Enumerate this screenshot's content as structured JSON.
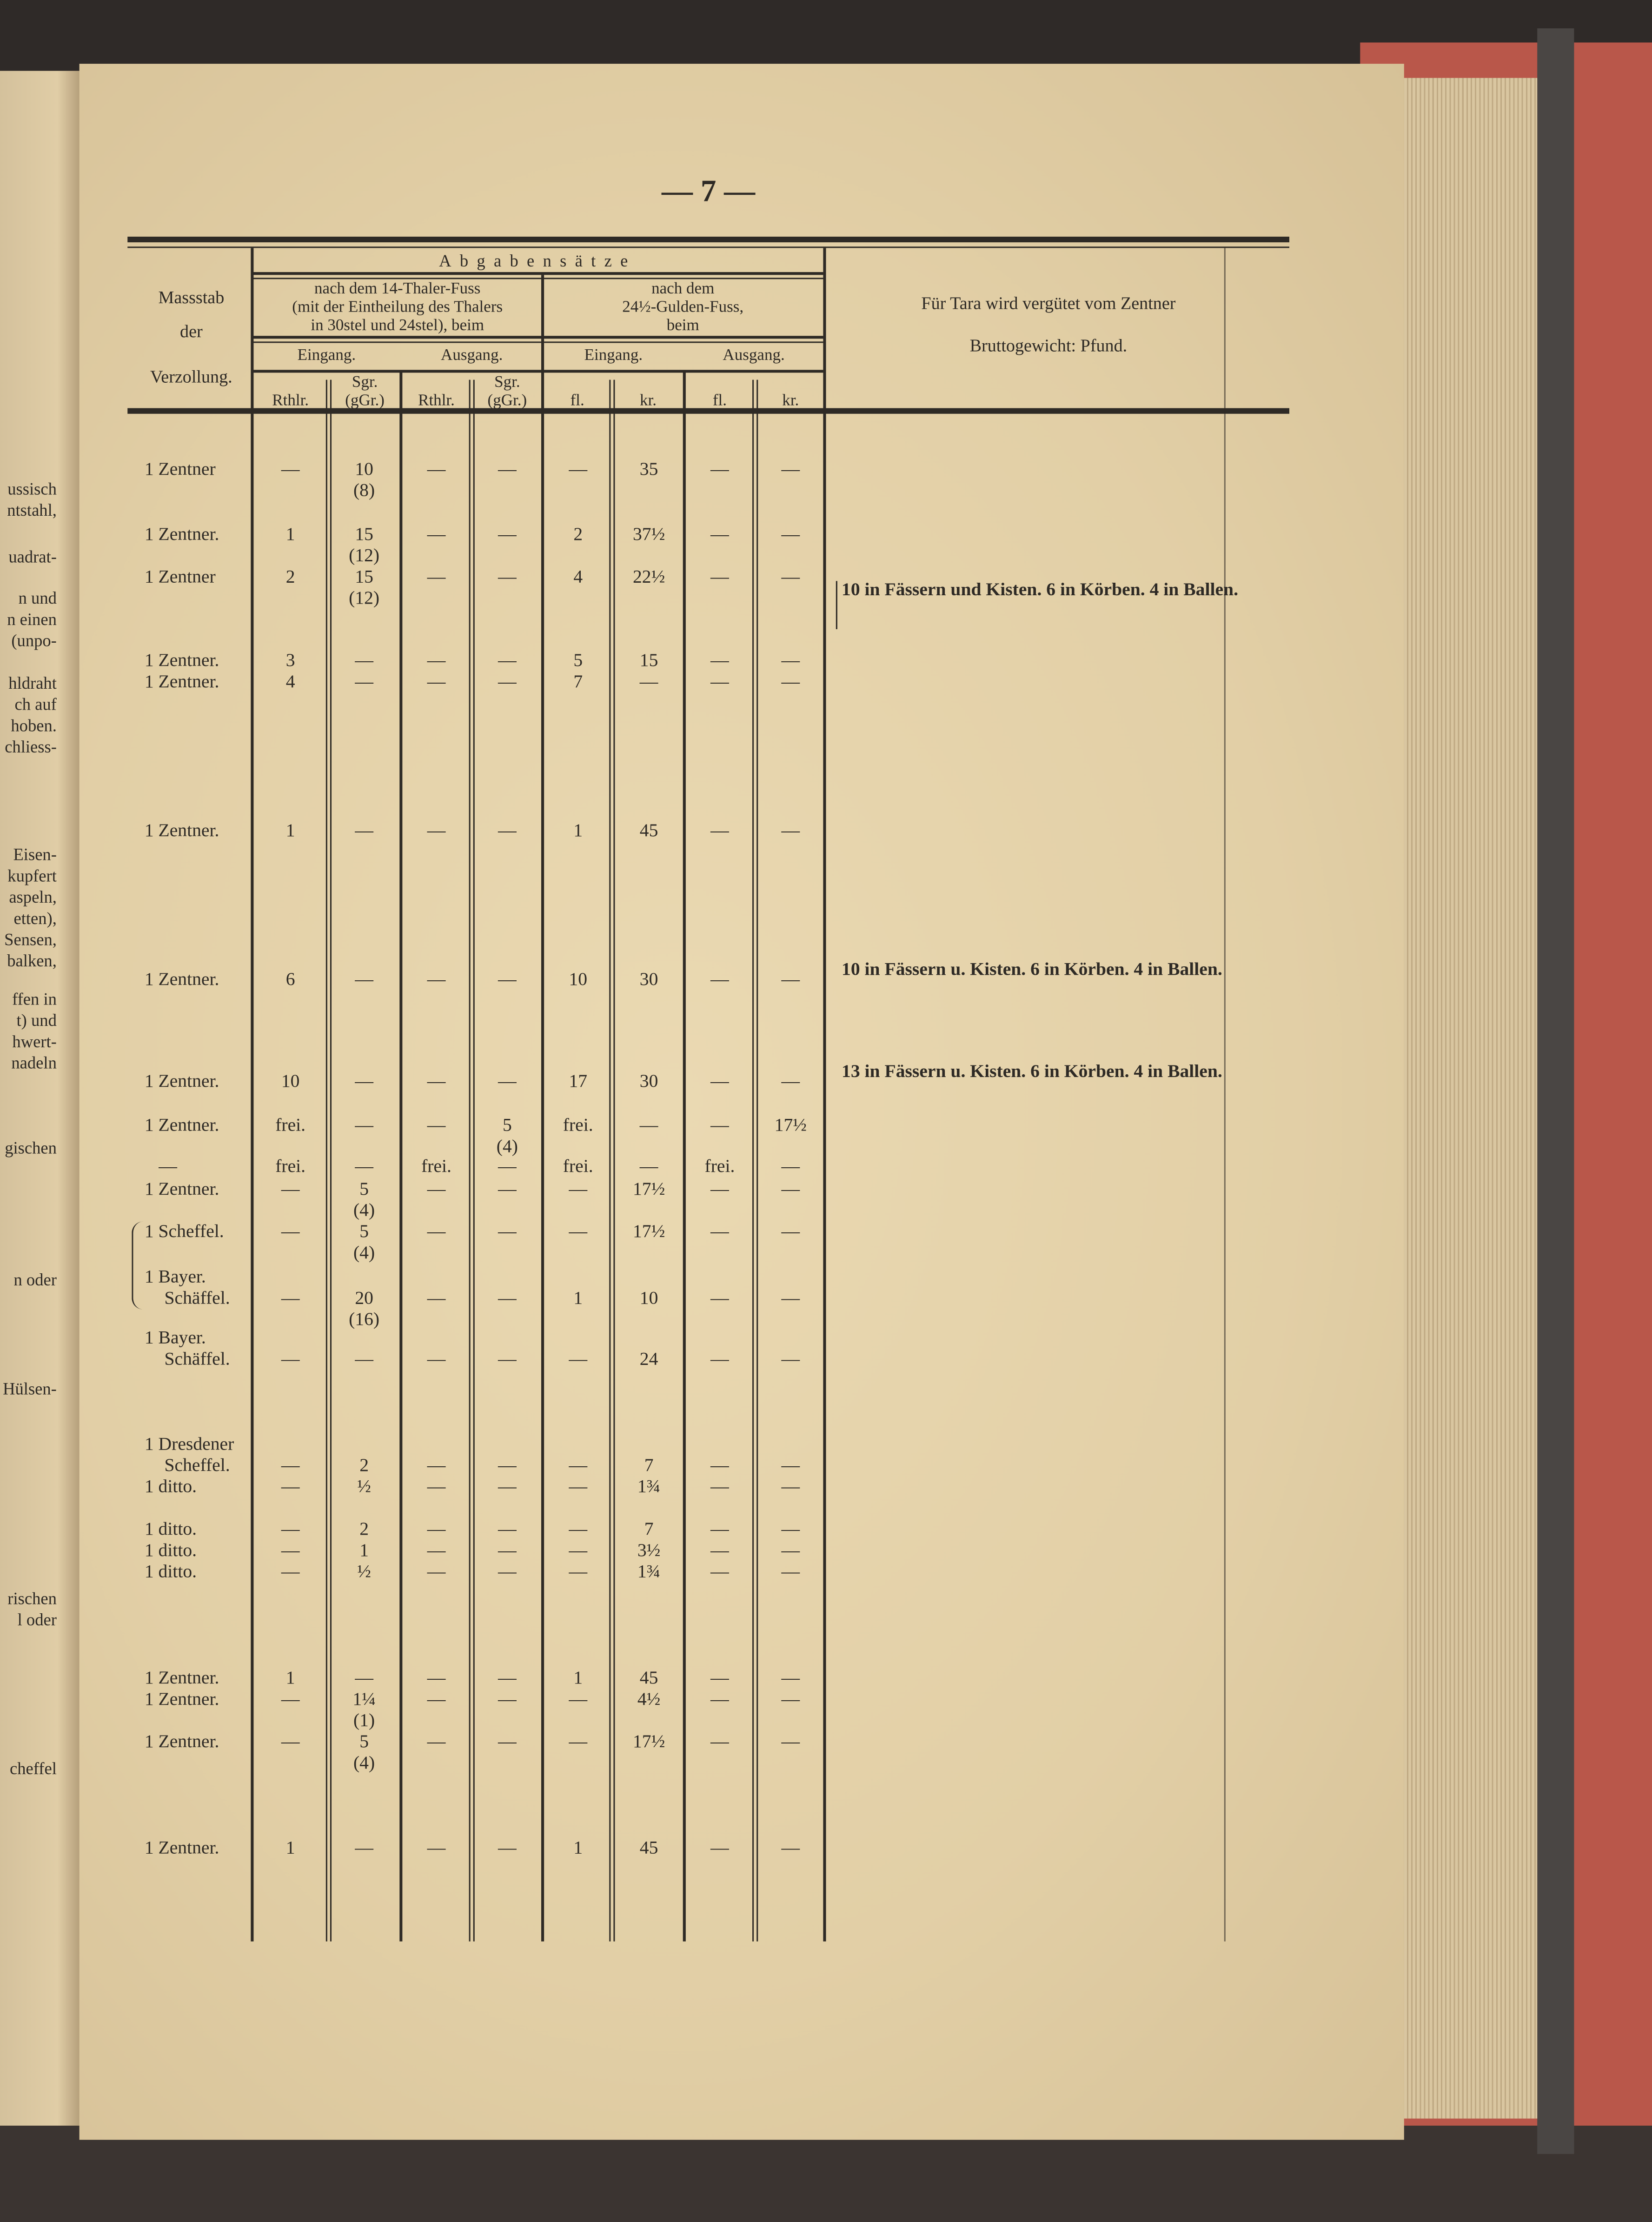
{
  "page_number": "— 7 —",
  "left_page_fragments": [
    "ussisch",
    "ntstahl,",
    "uadrat-",
    "n und",
    "n einen",
    "(unpo-",
    "hldraht",
    "ch auf",
    "hoben.",
    "chliess-",
    "Eisen-",
    "kupfert",
    "aspeln,",
    "etten),",
    "Sensen,",
    "balken,",
    "ffen in",
    "t) und",
    "hwert-",
    "nadeln",
    "gischen",
    "n oder",
    "Hülsen-",
    "rischen",
    "l oder",
    "cheffel"
  ],
  "header": {
    "massstab": "Massstab",
    "der": "der",
    "verzollung": "Verzollung.",
    "abgabensaetze": "Abgabensätze",
    "thaler_fuss": "nach dem 14-Thaler-Fuss\n(mit der Eintheilung des Thalers\nin 30stel und 24stel), beim",
    "gulden_fuss": "nach dem\n24½-Gulden-Fuss,\nbeim",
    "eingang": "Eingang.",
    "ausgang": "Ausgang.",
    "rthlr": "Rthlr.",
    "sgr": "Sgr.\n(gGr.)",
    "fl": "fl.",
    "kr": "kr.",
    "tara_line1": "Für Tara wird vergütet vom Zentner",
    "tara_line2": "Bruttogewicht: Pfund."
  },
  "rows": [
    {
      "label": "1 Zentner",
      "values": [
        "—",
        "10\n(8)",
        "—",
        "—",
        "—",
        "35",
        "—",
        "—"
      ]
    },
    {
      "label": "1 Zentner.",
      "values": [
        "1",
        "15\n(12)",
        "—",
        "—",
        "2",
        "37½",
        "—",
        "—"
      ]
    },
    {
      "label": "1 Zentner",
      "values": [
        "2",
        "15\n(12)",
        "—",
        "—",
        "4",
        "22½",
        "—",
        "—"
      ]
    },
    {
      "label": "1 Zentner.",
      "values": [
        "3",
        "—",
        "—",
        "—",
        "5",
        "15",
        "—",
        "—"
      ]
    },
    {
      "label": "1 Zentner.",
      "values": [
        "4",
        "—",
        "—",
        "—",
        "7",
        "—",
        "—",
        "—"
      ]
    },
    {
      "label": "1 Zentner.",
      "values": [
        "1",
        "—",
        "—",
        "—",
        "1",
        "45",
        "—",
        "—"
      ]
    },
    {
      "label": "1 Zentner.",
      "values": [
        "6",
        "—",
        "—",
        "—",
        "10",
        "30",
        "—",
        "—"
      ]
    },
    {
      "label": "1 Zentner.",
      "values": [
        "10",
        "—",
        "—",
        "—",
        "17",
        "30",
        "—",
        "—"
      ]
    },
    {
      "label": "1 Zentner.",
      "values": [
        "frei.",
        "—",
        "—",
        "5\n(4)",
        "frei.",
        "—",
        "—",
        "17½"
      ]
    },
    {
      "label": "—",
      "values": [
        "frei.",
        "—",
        "frei.",
        "—",
        "frei.",
        "—",
        "frei.",
        "—"
      ]
    },
    {
      "label": "1 Zentner.",
      "values": [
        "—",
        "5\n(4)",
        "—",
        "—",
        "—",
        "17½",
        "—",
        "—"
      ]
    },
    {
      "label": "1 Scheffel.",
      "values": [
        "—",
        "5\n(4)",
        "—",
        "—",
        "—",
        "17½",
        "—",
        "—"
      ]
    },
    {
      "label": "1 Bayer.\nSchäffel.",
      "values": [
        "—",
        "20\n(16)",
        "—",
        "—",
        "1",
        "10",
        "—",
        "—"
      ]
    },
    {
      "label": "1 Bayer.\nSchäffel.",
      "values": [
        "—",
        "—",
        "—",
        "—",
        "—",
        "24",
        "—",
        "—"
      ]
    },
    {
      "label": "1 Dresdener\nScheffel.",
      "values": [
        "—",
        "2",
        "—",
        "—",
        "—",
        "7",
        "—",
        "—"
      ]
    },
    {
      "label": "1 ditto.",
      "values": [
        "—",
        "½",
        "—",
        "—",
        "—",
        "1¾",
        "—",
        "—"
      ]
    },
    {
      "label": "1 ditto.",
      "values": [
        "—",
        "2",
        "—",
        "—",
        "—",
        "7",
        "—",
        "—"
      ]
    },
    {
      "label": "1 ditto.",
      "values": [
        "—",
        "1",
        "—",
        "—",
        "—",
        "3½",
        "—",
        "—"
      ]
    },
    {
      "label": "1 ditto.",
      "values": [
        "—",
        "½",
        "—",
        "—",
        "—",
        "1¾",
        "—",
        "—"
      ]
    },
    {
      "label": "1 Zentner.",
      "values": [
        "1",
        "—",
        "—",
        "—",
        "1",
        "45",
        "—",
        "—"
      ]
    },
    {
      "label": "1 Zentner.",
      "values": [
        "—",
        "1¼\n(1)",
        "—",
        "—",
        "—",
        "4½",
        "—",
        "—"
      ]
    },
    {
      "label": "1 Zentner.",
      "values": [
        "—",
        "5\n(4)",
        "—",
        "—",
        "—",
        "17½",
        "—",
        "—"
      ]
    },
    {
      "label": "1 Zentner.",
      "values": [
        "1",
        "—",
        "—",
        "—",
        "1",
        "45",
        "—",
        "—"
      ]
    }
  ],
  "tara_notes": [
    "10 in Fässern und Kisten. 6 in Körben. 4 in Ballen.",
    "10 in Fässern u. Kisten. 6 in Körben. 4 in Ballen.",
    "13 in Fässern u. Kisten. 6 in Körben. 4 in Ballen."
  ],
  "colors": {
    "paper": "#e6d4ab",
    "ink": "#2e2a25",
    "cover": "#b9574a"
  }
}
